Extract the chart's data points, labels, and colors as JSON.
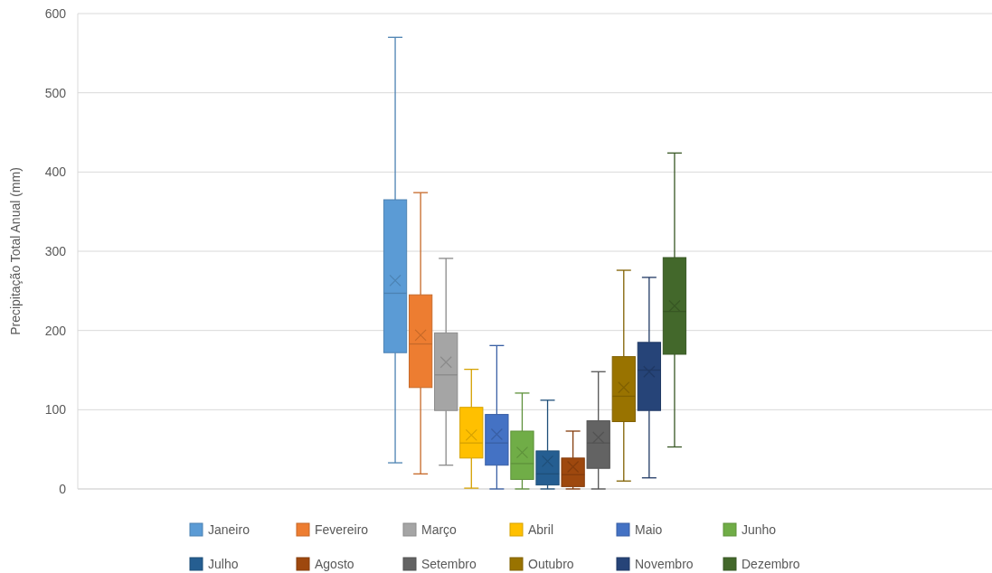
{
  "chart_data": {
    "type": "box",
    "ylabel": "Precipitação Total Anual (mm)",
    "categories": [
      null
    ],
    "ylim": [
      0,
      600
    ],
    "yticks": [
      0,
      100,
      200,
      300,
      400,
      500,
      600
    ],
    "grid": "y",
    "legend": "bottom",
    "series": [
      {
        "name": "Janeiro",
        "color": "#5b9bd5",
        "boxes": [
          {
            "low": 33,
            "q1": 172,
            "median": 247,
            "q3": 365,
            "high": 570,
            "mean": 263
          }
        ]
      },
      {
        "name": "Fevereiro",
        "color": "#ed7d31",
        "boxes": [
          {
            "low": 19,
            "q1": 128,
            "median": 183,
            "q3": 245,
            "high": 374,
            "mean": 194
          }
        ]
      },
      {
        "name": "Março",
        "color": "#a5a5a5",
        "boxes": [
          {
            "low": 30,
            "q1": 99,
            "median": 144,
            "q3": 197,
            "high": 291,
            "mean": 160
          }
        ]
      },
      {
        "name": "Abril",
        "color": "#ffc000",
        "boxes": [
          {
            "low": 1,
            "q1": 39,
            "median": 58,
            "q3": 103,
            "high": 151,
            "mean": 68
          }
        ]
      },
      {
        "name": "Maio",
        "color": "#4472c4",
        "boxes": [
          {
            "low": 0,
            "q1": 30,
            "median": 58,
            "q3": 94,
            "high": 181,
            "mean": 69
          }
        ]
      },
      {
        "name": "Junho",
        "color": "#70ad47",
        "boxes": [
          {
            "low": 0,
            "q1": 12,
            "median": 32,
            "q3": 73,
            "high": 121,
            "mean": 46
          }
        ]
      },
      {
        "name": "Julho",
        "color": "#255e91",
        "boxes": [
          {
            "low": 0,
            "q1": 5,
            "median": 19,
            "q3": 48,
            "high": 112,
            "mean": 35
          }
        ]
      },
      {
        "name": "Agosto",
        "color": "#9e480e",
        "boxes": [
          {
            "low": 0,
            "q1": 3,
            "median": 18,
            "q3": 39,
            "high": 73,
            "mean": 28
          }
        ]
      },
      {
        "name": "Setembro",
        "color": "#636363",
        "boxes": [
          {
            "low": 0,
            "q1": 26,
            "median": 58,
            "q3": 86,
            "high": 148,
            "mean": 65
          }
        ]
      },
      {
        "name": "Outubro",
        "color": "#997300",
        "boxes": [
          {
            "low": 10,
            "q1": 85,
            "median": 117,
            "q3": 167,
            "high": 276,
            "mean": 128
          }
        ]
      },
      {
        "name": "Novembro",
        "color": "#264478",
        "boxes": [
          {
            "low": 14,
            "q1": 99,
            "median": 150,
            "q3": 185,
            "high": 267,
            "mean": 148
          }
        ]
      },
      {
        "name": "Dezembro",
        "color": "#43682b",
        "boxes": [
          {
            "low": 53,
            "q1": 170,
            "median": 224,
            "q3": 292,
            "high": 424,
            "mean": 231
          }
        ]
      }
    ]
  }
}
